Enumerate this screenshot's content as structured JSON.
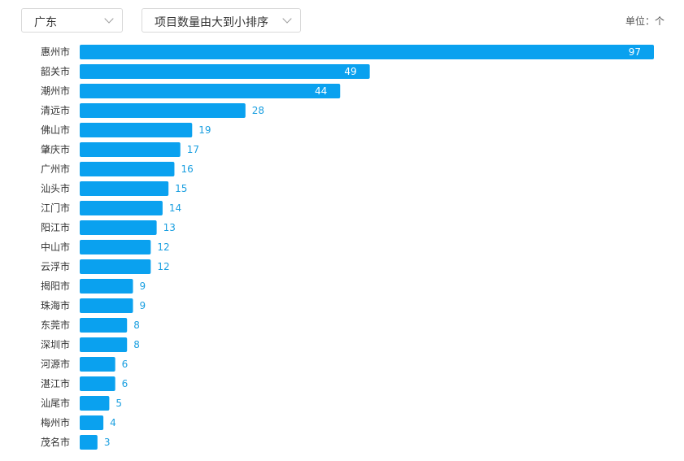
{
  "filters": {
    "region": {
      "selected": "广东",
      "icon": "chevron-down-icon"
    },
    "sort": {
      "selected": "项目数量由大到小排序",
      "icon": "chevron-down-icon"
    }
  },
  "unit_label": "单位：个",
  "colors": {
    "bar": "#0aa1ef",
    "value_inside": "#ffffff",
    "value_outside": "#1a9fe0",
    "category_label": "#333333"
  },
  "chart_data": {
    "type": "bar",
    "orientation": "horizontal",
    "categories": [
      "惠州市",
      "韶关市",
      "潮州市",
      "清远市",
      "佛山市",
      "肇庆市",
      "广州市",
      "汕头市",
      "江门市",
      "阳江市",
      "中山市",
      "云浮市",
      "揭阳市",
      "珠海市",
      "东莞市",
      "深圳市",
      "河源市",
      "湛江市",
      "汕尾市",
      "梅州市",
      "茂名市"
    ],
    "values": [
      97,
      49,
      44,
      28,
      19,
      17,
      16,
      15,
      14,
      13,
      12,
      12,
      9,
      9,
      8,
      8,
      6,
      6,
      5,
      4,
      3
    ],
    "xlim": [
      0,
      97
    ],
    "grid": false,
    "legend": "none"
  }
}
